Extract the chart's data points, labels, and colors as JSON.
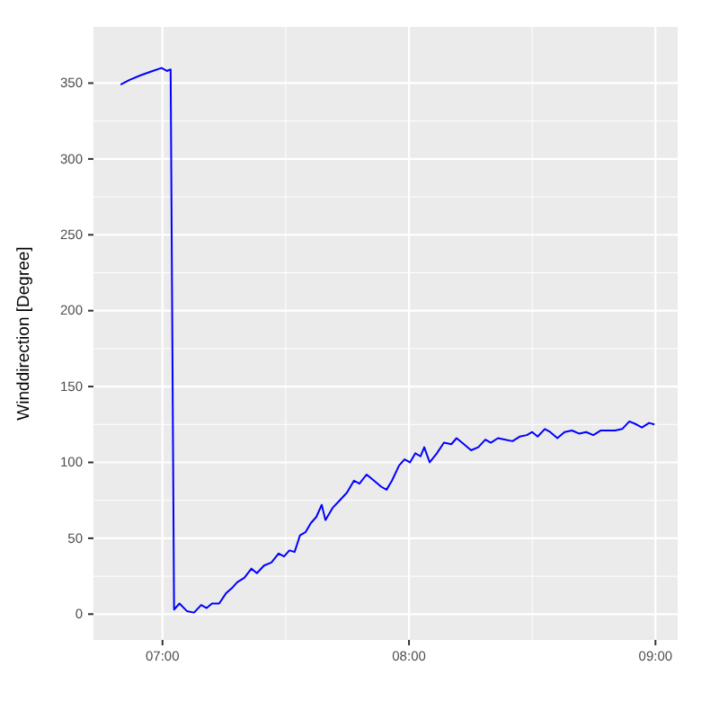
{
  "chart_data": {
    "type": "line",
    "ylabel": "Winddirection [Degree]",
    "xlim": [
      6.72,
      9.09
    ],
    "xticks": [
      {
        "value": 7,
        "label": "07:00"
      },
      {
        "value": 8,
        "label": "08:00"
      },
      {
        "value": 9,
        "label": "09:00"
      }
    ],
    "ylim": [
      -17,
      387
    ],
    "yticks": [
      0,
      50,
      100,
      150,
      200,
      250,
      300,
      350
    ],
    "grid": true,
    "x": [
      6.83,
      6.865,
      6.909,
      6.96,
      6.996,
      7.018,
      7.033,
      7.047,
      7.069,
      7.099,
      7.128,
      7.157,
      7.179,
      7.201,
      7.23,
      7.259,
      7.281,
      7.303,
      7.332,
      7.361,
      7.383,
      7.412,
      7.442,
      7.471,
      7.493,
      7.515,
      7.536,
      7.558,
      7.58,
      7.602,
      7.624,
      7.646,
      7.661,
      7.69,
      7.719,
      7.748,
      7.777,
      7.799,
      7.828,
      7.858,
      7.887,
      7.909,
      7.931,
      7.96,
      7.982,
      8.004,
      8.026,
      8.047,
      8.062,
      8.084,
      8.113,
      8.142,
      8.172,
      8.193,
      8.223,
      8.252,
      8.281,
      8.31,
      8.332,
      8.361,
      8.391,
      8.42,
      8.449,
      8.478,
      8.5,
      8.522,
      8.551,
      8.573,
      8.602,
      8.631,
      8.661,
      8.69,
      8.719,
      8.748,
      8.777,
      8.807,
      8.836,
      8.865,
      8.894,
      8.923,
      8.945,
      8.974,
      8.996
    ],
    "series": [
      {
        "color": "#0000ff",
        "values": [
          349,
          352,
          355,
          358,
          360,
          358,
          359,
          3,
          7,
          2,
          1,
          6,
          4,
          7,
          7,
          14,
          17,
          21,
          24,
          30,
          27,
          32,
          34,
          40,
          38,
          42,
          41,
          52,
          54,
          60,
          64,
          72,
          62,
          70,
          75,
          80,
          88,
          86,
          92,
          88,
          84,
          82,
          88,
          98,
          102,
          100,
          106,
          104,
          110,
          100,
          106,
          113,
          112,
          116,
          112,
          108,
          110,
          115,
          113,
          116,
          115,
          114,
          117,
          118,
          120,
          117,
          122,
          120,
          116,
          120,
          121,
          119,
          120,
          118,
          121,
          121,
          121,
          122,
          127,
          125,
          123,
          126,
          125
        ]
      }
    ]
  }
}
